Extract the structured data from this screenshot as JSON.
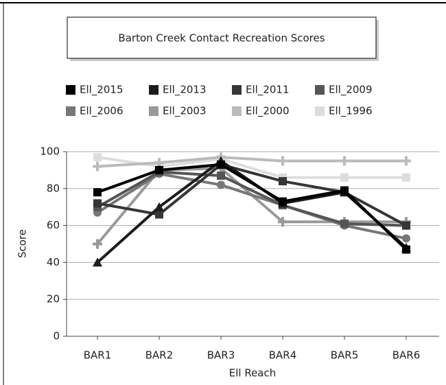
{
  "chart_data": {
    "type": "line",
    "title": "Barton Creek Contact Recreation Scores",
    "x_label": "Ell Reach",
    "y_label": "Score",
    "categories": [
      "BAR1",
      "BAR2",
      "BAR3",
      "BAR4",
      "BAR5",
      "BAR6"
    ],
    "series": [
      {
        "name": "Ell_2015",
        "color": "#000000",
        "marker": "square",
        "values": [
          78,
          90,
          93,
          73,
          79,
          47
        ]
      },
      {
        "name": "Ell_2013",
        "color": "#1c1c1c",
        "marker": "triangle",
        "values": [
          40,
          70,
          95,
          72,
          78,
          48
        ]
      },
      {
        "name": "Ell_2011",
        "color": "#363636",
        "marker": "square",
        "values": [
          72,
          66,
          93,
          84,
          78,
          60
        ]
      },
      {
        "name": "Ell_2009",
        "color": "#555555",
        "marker": "square",
        "values": [
          70,
          89,
          87,
          71,
          61,
          60
        ]
      },
      {
        "name": "Ell_2006",
        "color": "#777777",
        "marker": "circle",
        "values": [
          67,
          88,
          82,
          71,
          60,
          53
        ]
      },
      {
        "name": "Ell_2003",
        "color": "#999999",
        "marker": "plus",
        "values": [
          50,
          90,
          91,
          62,
          62,
          62
        ]
      },
      {
        "name": "Ell_2000",
        "color": "#bbbbbb",
        "marker": "plus",
        "values": [
          92,
          94,
          97,
          95,
          95,
          95
        ]
      },
      {
        "name": "Ell_1996",
        "color": "#dddddd",
        "marker": "square",
        "values": [
          97,
          92,
          96,
          86,
          86,
          86
        ]
      }
    ],
    "ylim": [
      0,
      100
    ],
    "yticks": [
      0,
      20,
      40,
      60,
      80,
      100
    ],
    "grid": true
  }
}
